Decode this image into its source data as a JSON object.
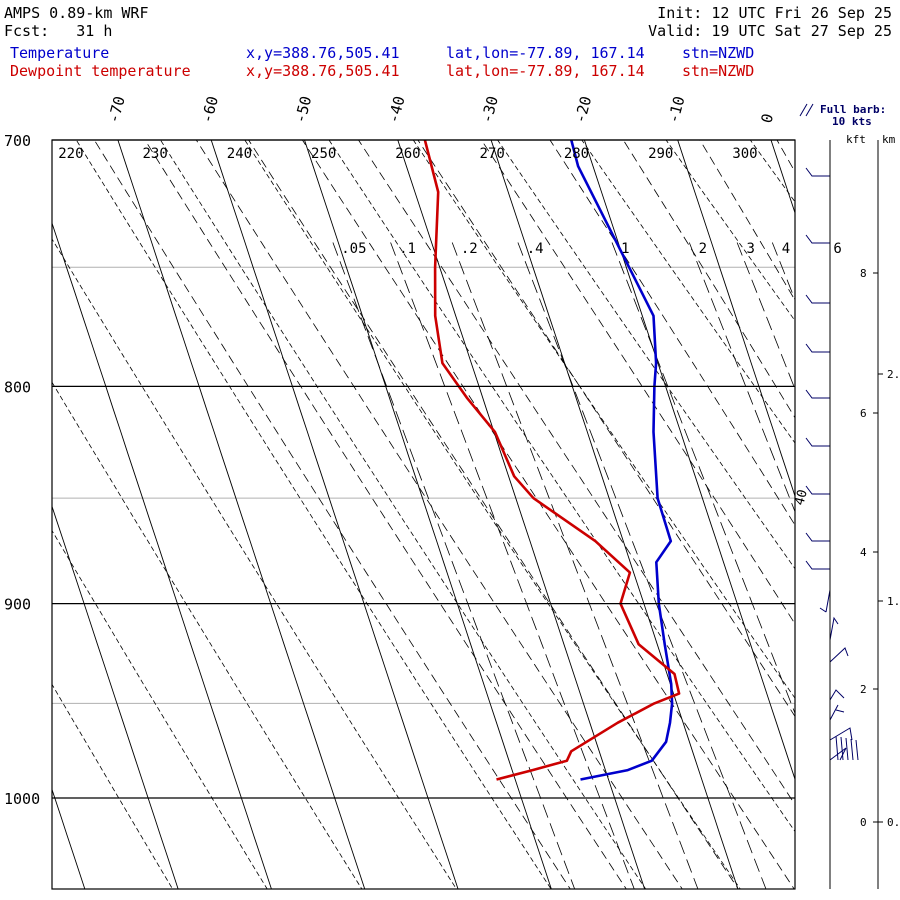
{
  "header": {
    "model": "AMPS 0.89-km WRF",
    "fcst": "Fcst:   31 h",
    "init": "Init: 12 UTC Fri 26 Sep 25",
    "valid": "Valid: 19 UTC Sat 27 Sep 25",
    "legend": [
      {
        "name": "Temperature",
        "xy": "x,y=388.76,505.41",
        "latlon": "lat,lon=-77.89, 167.14",
        "stn": "stn=NZWD",
        "color": "#0000cc"
      },
      {
        "name": "Dewpoint temperature",
        "xy": "x,y=388.76,505.41",
        "latlon": "lat,lon=-77.89, 167.14",
        "stn": "stn=NZWD",
        "color": "#cc0000"
      }
    ],
    "barb_key": [
      "Full barb:",
      "10 kts"
    ]
  },
  "chart_data": {
    "type": "line",
    "title": "AMPS 0.89-km WRF",
    "pressure_axis": {
      "ticks": [
        700,
        800,
        900,
        1000
      ],
      "range": [
        700,
        1050
      ],
      "log": true
    },
    "temperature_labels": [
      "-70",
      "-60",
      "-50",
      "-40",
      "-30",
      "-20",
      "-10",
      "0"
    ],
    "theta_labels": [
      "220",
      "230",
      "240",
      "250",
      "260",
      "270",
      "280",
      "290",
      "300"
    ],
    "mixing_ratio_labels": [
      ".05",
      ".1",
      ".2",
      ".4",
      "1",
      "2",
      "3",
      "4",
      "6"
    ],
    "height_axis_kft": [
      "8",
      "6",
      "4",
      "2",
      "0"
    ],
    "height_axis_km": [
      "2.",
      "1.",
      "0."
    ],
    "barb_side_label": "40",
    "axis_units": {
      "kft": "kft",
      "km": "km"
    },
    "series": [
      {
        "name": "Temperature",
        "color": "#0000cc",
        "x": [
          -21.4,
          -21.6,
          -19.7,
          -18.8,
          -20.2,
          -21.2,
          -22.9,
          -24.8,
          -24.9,
          -27.2,
          -28.4,
          -29.2,
          -29.9,
          -30.5,
          -31.4,
          -32.5,
          -34.7,
          -37.6,
          -43.0
        ],
        "y": [
          700,
          710,
          750,
          770,
          790,
          800,
          820,
          850,
          870,
          880,
          900,
          920,
          940,
          950,
          960,
          970,
          980,
          985,
          990
        ]
      },
      {
        "name": "Dewpoint temperature",
        "color": "#cc0000",
        "x": [
          -37.1,
          -37.5,
          -40.5,
          -42.2,
          -43.1,
          -41.7,
          -39.9,
          -39.4,
          -38.1,
          -33.0,
          -30.4,
          -32.5,
          -32.0,
          -29.2,
          -29.4,
          -32.4,
          -37.0,
          -43.0,
          -43.8,
          -47.8,
          -52.0
        ],
        "y": [
          700,
          720,
          750,
          770,
          790,
          805,
          820,
          840,
          850,
          870,
          885,
          900,
          920,
          935,
          945,
          950,
          960,
          975,
          980,
          985,
          990
        ]
      }
    ]
  }
}
